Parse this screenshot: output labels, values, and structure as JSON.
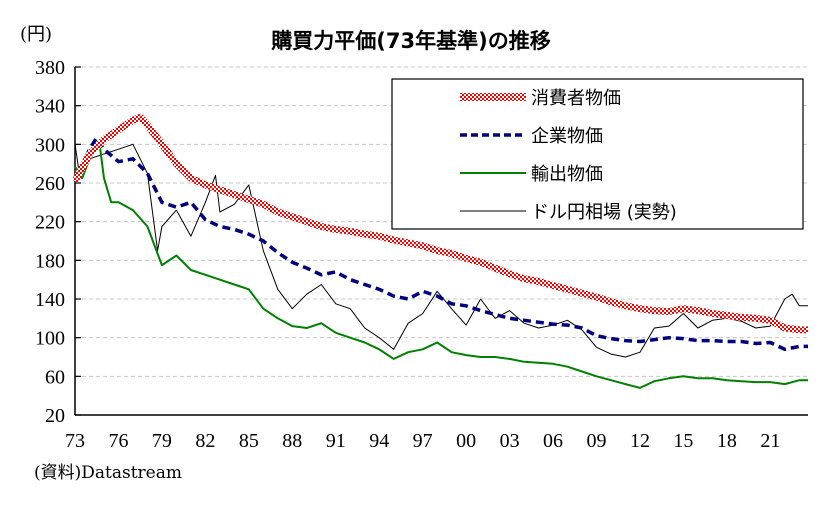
{
  "chart_data": {
    "type": "line",
    "title": "購買力平価(73年基準)の推移",
    "ylabel": "(円)",
    "xlabel": "",
    "source": "(資料)Datastream",
    "ylim": [
      20,
      380
    ],
    "xlim": [
      1973,
      2023.6
    ],
    "yticks": [
      380,
      340,
      300,
      260,
      220,
      180,
      140,
      100,
      60,
      20
    ],
    "xtick_years": [
      1973,
      1976,
      1979,
      1982,
      1985,
      1988,
      1991,
      1994,
      1997,
      2000,
      2003,
      2006,
      2009,
      2012,
      2015,
      2018,
      2021
    ],
    "xtick_labels": [
      "73",
      "76",
      "79",
      "82",
      "85",
      "88",
      "91",
      "94",
      "97",
      "00",
      "03",
      "06",
      "09",
      "12",
      "15",
      "18",
      "21"
    ],
    "grid": true,
    "legend_position": "top-right",
    "series": [
      {
        "name": "消費者物価",
        "color": "#ff0000",
        "style": "hatched-thick",
        "x": [
          1973,
          1974,
          1975,
          1976,
          1977,
          1977.5,
          1978,
          1979,
          1980,
          1981,
          1982,
          1983,
          1984,
          1985,
          1986,
          1987,
          1988,
          1989,
          1990,
          1991,
          1992,
          1993,
          1994,
          1995,
          1996,
          1997,
          1998,
          1999,
          2000,
          2001,
          2002,
          2003,
          2004,
          2005,
          2006,
          2007,
          2008,
          2009,
          2010,
          2011,
          2012,
          2013,
          2014,
          2015,
          2016,
          2017,
          2018,
          2019,
          2020,
          2021,
          2022,
          2023,
          2023.6
        ],
        "values": [
          262,
          290,
          305,
          315,
          325,
          328,
          320,
          300,
          280,
          265,
          258,
          253,
          248,
          243,
          238,
          230,
          225,
          220,
          215,
          212,
          210,
          207,
          205,
          201,
          198,
          195,
          190,
          187,
          182,
          178,
          172,
          166,
          161,
          158,
          154,
          150,
          146,
          142,
          137,
          133,
          130,
          128,
          127,
          130,
          128,
          125,
          123,
          121,
          120,
          118,
          110,
          108,
          108
        ]
      },
      {
        "name": "企業物価",
        "color": "#000080",
        "style": "dashed",
        "x": [
          1973,
          1974,
          1974.5,
          1975,
          1976,
          1977,
          1978,
          1979,
          1980,
          1981,
          1982,
          1983,
          1984,
          1985,
          1986,
          1987,
          1988,
          1989,
          1990,
          1991,
          1992,
          1993,
          1994,
          1995,
          1996,
          1997,
          1998,
          1999,
          2000,
          2001,
          2002,
          2003,
          2004,
          2005,
          2006,
          2007,
          2008,
          2009,
          2010,
          2011,
          2012,
          2013,
          2014,
          2015,
          2016,
          2017,
          2018,
          2019,
          2020,
          2021,
          2022,
          2023,
          2023.6
        ],
        "values": [
          262,
          295,
          307,
          295,
          282,
          285,
          270,
          240,
          235,
          240,
          222,
          215,
          212,
          207,
          200,
          188,
          178,
          172,
          165,
          168,
          160,
          155,
          150,
          143,
          140,
          148,
          143,
          135,
          133,
          128,
          124,
          120,
          118,
          116,
          114,
          113,
          110,
          102,
          99,
          97,
          96,
          98,
          100,
          99,
          97,
          97,
          96,
          96,
          94,
          95,
          88,
          91,
          91
        ]
      },
      {
        "name": "輸出物価",
        "color": "#008000",
        "style": "solid",
        "x": [
          1973,
          1973.5,
          1974,
          1974.7,
          1975,
          1975.5,
          1976,
          1977,
          1978,
          1979,
          1980,
          1981,
          1982,
          1983,
          1984,
          1985,
          1986,
          1987,
          1988,
          1989,
          1990,
          1991,
          1992,
          1993,
          1994,
          1995,
          1996,
          1997,
          1998,
          1999,
          2000,
          2001,
          2002,
          2003,
          2004,
          2005,
          2006,
          2007,
          2008,
          2009,
          2010,
          2011,
          2012,
          2013,
          2014,
          2015,
          2016,
          2017,
          2018,
          2019,
          2020,
          2021,
          2022,
          2023,
          2023.6
        ],
        "values": [
          277,
          265,
          285,
          300,
          265,
          240,
          240,
          232,
          215,
          175,
          185,
          170,
          165,
          160,
          155,
          150,
          130,
          120,
          112,
          110,
          115,
          105,
          100,
          95,
          88,
          78,
          85,
          88,
          95,
          85,
          82,
          80,
          80,
          78,
          75,
          74,
          73,
          70,
          65,
          60,
          56,
          52,
          48,
          55,
          58,
          60,
          58,
          58,
          56,
          55,
          54,
          54,
          52,
          56,
          56
        ]
      },
      {
        "name": "ドル円相場(実勢)",
        "color": "#000000",
        "style": "thin",
        "x": [
          1973,
          1973.3,
          1974,
          1975,
          1976,
          1977,
          1978,
          1978.7,
          1979,
          1980,
          1981,
          1982,
          1982.7,
          1983,
          1984,
          1985,
          1986,
          1987,
          1988,
          1989,
          1990,
          1991,
          1992,
          1993,
          1994,
          1995,
          1996,
          1997,
          1998,
          1999,
          2000,
          2001,
          2002,
          2003,
          2004,
          2005,
          2006,
          2007,
          2008,
          2009,
          2010,
          2011,
          2012,
          2013,
          2014,
          2015,
          2016,
          2017,
          2018,
          2019,
          2020,
          2021,
          2022,
          2022.5,
          2023,
          2023.6
        ],
        "values": [
          300,
          270,
          285,
          290,
          295,
          300,
          270,
          190,
          215,
          232,
          205,
          240,
          268,
          230,
          238,
          258,
          190,
          150,
          130,
          145,
          155,
          135,
          130,
          110,
          100,
          88,
          115,
          125,
          148,
          130,
          113,
          140,
          120,
          128,
          115,
          110,
          113,
          118,
          108,
          90,
          83,
          80,
          85,
          110,
          112,
          125,
          110,
          118,
          120,
          117,
          110,
          112,
          140,
          145,
          133,
          133
        ]
      }
    ],
    "legend_labels": [
      "消費者物価",
      "企業物価",
      "輸出物価",
      "ドル円相場 (実勢)"
    ]
  }
}
